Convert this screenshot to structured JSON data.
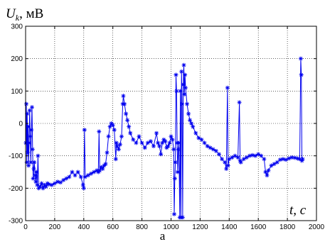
{
  "chart_data": {
    "type": "line",
    "ylabel_main": "U",
    "ylabel_sub": "k",
    "ylabel_unit": ", мВ",
    "xlabel": "t, c",
    "caption": "а",
    "xlim": [
      0,
      2000
    ],
    "ylim": [
      -300,
      300
    ],
    "xticks": [
      0,
      200,
      400,
      600,
      800,
      1000,
      1200,
      1400,
      1600,
      1800,
      2000
    ],
    "yticks": [
      -300,
      -200,
      -100,
      0,
      100,
      200,
      300
    ],
    "grid": true,
    "grid_style": "dotted",
    "series_color": "#0000ee",
    "marker": "star",
    "series": [
      {
        "points": [
          [
            2,
            -60
          ],
          [
            5,
            60
          ],
          [
            8,
            -120
          ],
          [
            11,
            30
          ],
          [
            14,
            -90
          ],
          [
            17,
            -10
          ],
          [
            20,
            -130
          ],
          [
            24,
            -60
          ],
          [
            28,
            40
          ],
          [
            32,
            -40
          ],
          [
            36,
            -120
          ],
          [
            40,
            -20
          ],
          [
            44,
            50
          ],
          [
            48,
            -80
          ],
          [
            52,
            -170
          ],
          [
            56,
            -140
          ],
          [
            60,
            -120
          ],
          [
            65,
            -160
          ],
          [
            70,
            -180
          ],
          [
            75,
            -150
          ],
          [
            80,
            -190
          ],
          [
            85,
            -100
          ],
          [
            90,
            -200
          ],
          [
            100,
            -195
          ],
          [
            110,
            -185
          ],
          [
            120,
            -200
          ],
          [
            130,
            -190
          ],
          [
            140,
            -195
          ],
          [
            150,
            -185
          ],
          [
            160,
            -188
          ],
          [
            180,
            -190
          ],
          [
            200,
            -185
          ],
          [
            220,
            -180
          ],
          [
            240,
            -182
          ],
          [
            260,
            -175
          ],
          [
            280,
            -170
          ],
          [
            300,
            -165
          ],
          [
            320,
            -150
          ],
          [
            340,
            -160
          ],
          [
            360,
            -150
          ],
          [
            380,
            -165
          ],
          [
            395,
            -190
          ],
          [
            400,
            -200
          ],
          [
            405,
            -20
          ],
          [
            410,
            -165
          ],
          [
            430,
            -160
          ],
          [
            450,
            -155
          ],
          [
            470,
            -150
          ],
          [
            490,
            -145
          ],
          [
            500,
            -150
          ],
          [
            505,
            -25
          ],
          [
            510,
            -145
          ],
          [
            520,
            -135
          ],
          [
            530,
            -140
          ],
          [
            540,
            -130
          ],
          [
            550,
            -125
          ],
          [
            560,
            -90
          ],
          [
            570,
            -40
          ],
          [
            580,
            -10
          ],
          [
            590,
            0
          ],
          [
            600,
            -5
          ],
          [
            610,
            -20
          ],
          [
            620,
            -110
          ],
          [
            625,
            -60
          ],
          [
            630,
            -70
          ],
          [
            640,
            -80
          ],
          [
            650,
            -65
          ],
          [
            660,
            -40
          ],
          [
            668,
            60
          ],
          [
            672,
            85
          ],
          [
            680,
            60
          ],
          [
            690,
            30
          ],
          [
            700,
            10
          ],
          [
            710,
            -10
          ],
          [
            720,
            -30
          ],
          [
            740,
            -50
          ],
          [
            760,
            -60
          ],
          [
            780,
            -40
          ],
          [
            800,
            -60
          ],
          [
            820,
            -75
          ],
          [
            840,
            -60
          ],
          [
            860,
            -55
          ],
          [
            880,
            -70
          ],
          [
            900,
            -30
          ],
          [
            910,
            -60
          ],
          [
            920,
            -70
          ],
          [
            930,
            -95
          ],
          [
            940,
            -60
          ],
          [
            950,
            -50
          ],
          [
            960,
            -55
          ],
          [
            970,
            -75
          ],
          [
            980,
            -70
          ],
          [
            990,
            -60
          ],
          [
            1000,
            -40
          ],
          [
            1010,
            -50
          ],
          [
            1018,
            -80
          ],
          [
            1022,
            -280
          ],
          [
            1026,
            -170
          ],
          [
            1030,
            -120
          ],
          [
            1034,
            150
          ],
          [
            1038,
            100
          ],
          [
            1042,
            -60
          ],
          [
            1046,
            -150
          ],
          [
            1050,
            -80
          ],
          [
            1054,
            -60
          ],
          [
            1060,
            -290
          ],
          [
            1064,
            100
          ],
          [
            1068,
            -290
          ],
          [
            1072,
            160
          ],
          [
            1076,
            60
          ],
          [
            1080,
            -290
          ],
          [
            1084,
            120
          ],
          [
            1088,
            180
          ],
          [
            1092,
            90
          ],
          [
            1096,
            150
          ],
          [
            1100,
            110
          ],
          [
            1110,
            60
          ],
          [
            1120,
            30
          ],
          [
            1130,
            10
          ],
          [
            1140,
            0
          ],
          [
            1150,
            -10
          ],
          [
            1170,
            -30
          ],
          [
            1190,
            -45
          ],
          [
            1210,
            -50
          ],
          [
            1230,
            -60
          ],
          [
            1250,
            -70
          ],
          [
            1270,
            -75
          ],
          [
            1290,
            -80
          ],
          [
            1310,
            -85
          ],
          [
            1330,
            -95
          ],
          [
            1350,
            -110
          ],
          [
            1370,
            -120
          ],
          [
            1380,
            -140
          ],
          [
            1388,
            110
          ],
          [
            1392,
            -130
          ],
          [
            1400,
            -110
          ],
          [
            1420,
            -105
          ],
          [
            1440,
            -100
          ],
          [
            1460,
            -105
          ],
          [
            1470,
            65
          ],
          [
            1475,
            -115
          ],
          [
            1480,
            -120
          ],
          [
            1500,
            -110
          ],
          [
            1520,
            -105
          ],
          [
            1540,
            -100
          ],
          [
            1560,
            -98
          ],
          [
            1580,
            -100
          ],
          [
            1600,
            -95
          ],
          [
            1620,
            -100
          ],
          [
            1640,
            -110
          ],
          [
            1650,
            -150
          ],
          [
            1660,
            -160
          ],
          [
            1670,
            -145
          ],
          [
            1690,
            -130
          ],
          [
            1710,
            -125
          ],
          [
            1730,
            -120
          ],
          [
            1750,
            -112
          ],
          [
            1770,
            -110
          ],
          [
            1790,
            -112
          ],
          [
            1810,
            -108
          ],
          [
            1830,
            -105
          ],
          [
            1850,
            -106
          ],
          [
            1870,
            -108
          ],
          [
            1885,
            -110
          ],
          [
            1892,
            200
          ],
          [
            1896,
            150
          ],
          [
            1900,
            -115
          ],
          [
            1905,
            -110
          ]
        ]
      }
    ]
  }
}
